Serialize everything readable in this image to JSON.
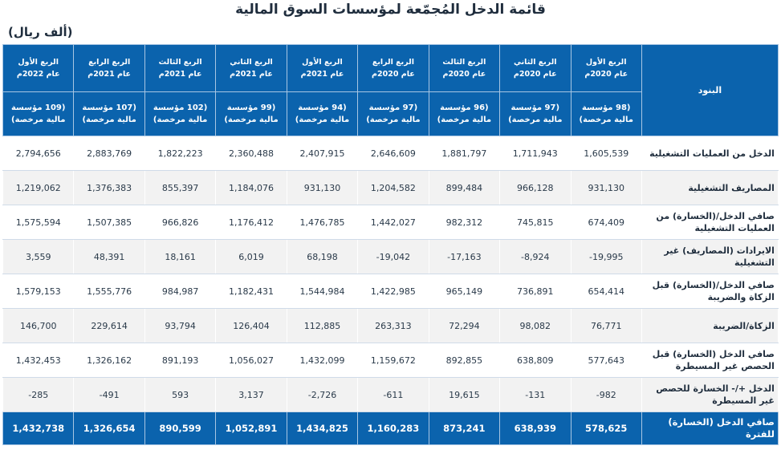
{
  "title": "قائمة الدخل المُجمّعة لمؤسسات السوق المالية",
  "unit": "(ألف ريال)",
  "table": {
    "items_header": "البنود",
    "quarters": [
      {
        "quarter": "الربع الأول",
        "year": "عام 2020م",
        "count": "(98 مؤسسة مالية مرخصة)"
      },
      {
        "quarter": "الربع الثاني",
        "year": "عام 2020م",
        "count": "(97 مؤسسة مالية مرخصة)"
      },
      {
        "quarter": "الربع الثالث",
        "year": "عام 2020م",
        "count": "(96 مؤسسة مالية مرخصة)"
      },
      {
        "quarter": "الربع الرابع",
        "year": "عام 2020م",
        "count": "(97 مؤسسة مالية مرخصة)"
      },
      {
        "quarter": "الربع الأول",
        "year": "عام 2021م",
        "count": "(94 مؤسسة مالية مرخصة)"
      },
      {
        "quarter": "الربع الثاني",
        "year": "عام 2021م",
        "count": "(99 مؤسسة مالية مرخصة)"
      },
      {
        "quarter": "الربع الثالث",
        "year": "عام 2021م",
        "count": "(102 مؤسسة مالية مرخصة)"
      },
      {
        "quarter": "الربع الرابع",
        "year": "عام 2021م",
        "count": "(107 مؤسسة مالية مرخصة)"
      },
      {
        "quarter": "الربع الأول",
        "year": "عام 2022م",
        "count": "(109 مؤسسة مالية مرخصة)"
      }
    ],
    "rows": [
      {
        "label": "الدخل من العمليات التشغيلية",
        "values": [
          "1,605,539",
          "1,711,943",
          "1,881,797",
          "2,646,609",
          "2,407,915",
          "2,360,488",
          "1,822,223",
          "2,883,769",
          "2,794,656"
        ]
      },
      {
        "label": "المصاريف التشغيلية",
        "values": [
          "931,130",
          "966,128",
          "899,484",
          "1,204,582",
          "931,130",
          "1,184,076",
          "855,397",
          "1,376,383",
          "1,219,062"
        ]
      },
      {
        "label": "صافي الدخل/(الخسارة) من العمليات التشغيلية",
        "values": [
          "674,409",
          "745,815",
          "982,312",
          "1,442,027",
          "1,476,785",
          "1,176,412",
          "966,826",
          "1,507,385",
          "1,575,594"
        ]
      },
      {
        "label": "الايرادات (المصاريف) غير التشغيلية",
        "values": [
          "-19,995",
          "-8,924",
          "-17,163",
          "-19,042",
          "68,198",
          "6,019",
          "18,161",
          "48,391",
          "3,559"
        ]
      },
      {
        "label": "صافي الدخل/(الخسارة) قبل الزكاة والضريبة",
        "values": [
          "654,414",
          "736,891",
          "965,149",
          "1,422,985",
          "1,544,984",
          "1,182,431",
          "984,987",
          "1,555,776",
          "1,579,153"
        ]
      },
      {
        "label": "الزكاة/الضريبة",
        "values": [
          "76,771",
          "98,082",
          "72,294",
          "263,313",
          "112,885",
          "126,404",
          "93,794",
          "229,614",
          "146,700"
        ]
      },
      {
        "label": "صافي الدخل (الخسارة) قبل الحصص غير المسيطرة",
        "values": [
          "577,643",
          "638,809",
          "892,855",
          "1,159,672",
          "1,432,099",
          "1,056,027",
          "891,193",
          "1,326,162",
          "1,432,453"
        ]
      },
      {
        "label": "الدخل +/- الخسارة للحصص غير المسيطرة",
        "values": [
          "-982",
          "-131",
          "19,615",
          "-611",
          "-2,726",
          "3,137",
          "593",
          "-491",
          "-285"
        ]
      }
    ],
    "total": {
      "label": "صافي الدخل (الخسارة) للفترة",
      "values": [
        "578,625",
        "638,939",
        "873,241",
        "1,160,283",
        "1,434,825",
        "1,052,891",
        "890,599",
        "1,326,654",
        "1,432,738"
      ]
    }
  }
}
